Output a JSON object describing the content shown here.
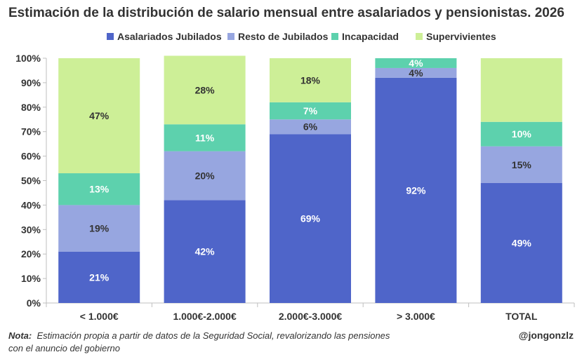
{
  "title": "Estimación de la distribución de salario mensual entre asalariados y pensionistas. 2026",
  "footnote": {
    "label": "Nota:",
    "text": "Estimación propia a partir de datos de la Seguridad Social, revalorizando las pensiones con el anuncio del gobierno"
  },
  "handle": "@jongonzlz",
  "chart_data": {
    "type": "bar",
    "stacked": true,
    "categories": [
      "< 1.000€",
      "1.000€-2.000€",
      "2.000€-3.000€",
      "> 3.000€",
      "TOTAL"
    ],
    "series": [
      {
        "name": "Asalariados Jubilados",
        "color": "#4f65c9",
        "values": [
          21,
          42,
          69,
          92,
          49
        ],
        "labels": [
          "21%",
          "42%",
          "69%",
          "92%",
          "49%"
        ],
        "label_color": "#ffffff"
      },
      {
        "name": "Resto de Jubilados",
        "color": "#97a6e0",
        "values": [
          19,
          20,
          6,
          4,
          15
        ],
        "labels": [
          "19%",
          "20%",
          "6%",
          "4%",
          "15%"
        ],
        "label_color": "#333333"
      },
      {
        "name": "Incapacidad",
        "color": "#5dd1ad",
        "values": [
          13,
          11,
          7,
          4,
          10
        ],
        "labels": [
          "13%",
          "11%",
          "7%",
          "4%",
          "10%"
        ],
        "label_color": "#ffffff"
      },
      {
        "name": "Supervivientes",
        "color": "#cdef97",
        "values": [
          47,
          28,
          18,
          0,
          26
        ],
        "labels": [
          "47%",
          "28%",
          "18%",
          "",
          ""
        ],
        "label_color": "#333333"
      }
    ],
    "ylim": [
      0,
      100
    ],
    "yticks": [
      "0%",
      "10%",
      "20%",
      "30%",
      "40%",
      "50%",
      "60%",
      "70%",
      "80%",
      "90%",
      "100%"
    ],
    "grid": false,
    "legend": "top-center",
    "xlabel": "",
    "ylabel": ""
  }
}
